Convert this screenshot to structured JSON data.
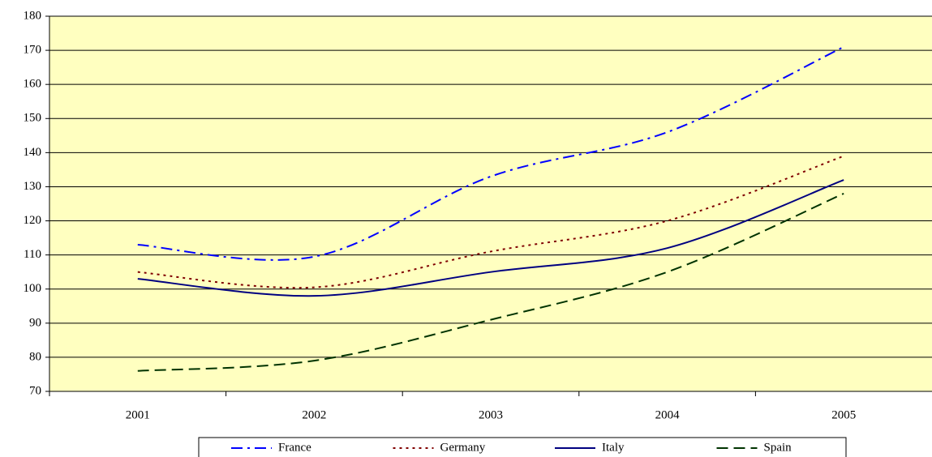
{
  "chart_data": {
    "type": "line",
    "smooth": true,
    "categories": [
      "2001",
      "2002",
      "2003",
      "2004",
      "2005"
    ],
    "series": [
      {
        "name": "France",
        "color": "#0000ff",
        "style": "dash-dot",
        "values": [
          113,
          109.5,
          133,
          146,
          171
        ]
      },
      {
        "name": "Germany",
        "color": "#800000",
        "style": "dotted",
        "values": [
          105,
          100.5,
          111,
          120,
          139
        ]
      },
      {
        "name": "Italy",
        "color": "#000080",
        "style": "solid",
        "values": [
          103,
          98,
          105,
          112,
          132
        ]
      },
      {
        "name": "Spain",
        "color": "#003300",
        "style": "dashed",
        "values": [
          76,
          79,
          91,
          105,
          128
        ]
      }
    ],
    "ylim": [
      70,
      180
    ],
    "yticks": [
      70,
      80,
      90,
      100,
      110,
      120,
      130,
      140,
      150,
      160,
      170,
      180
    ],
    "grid": true,
    "legend": "bottom",
    "background": "#ffffc0"
  }
}
